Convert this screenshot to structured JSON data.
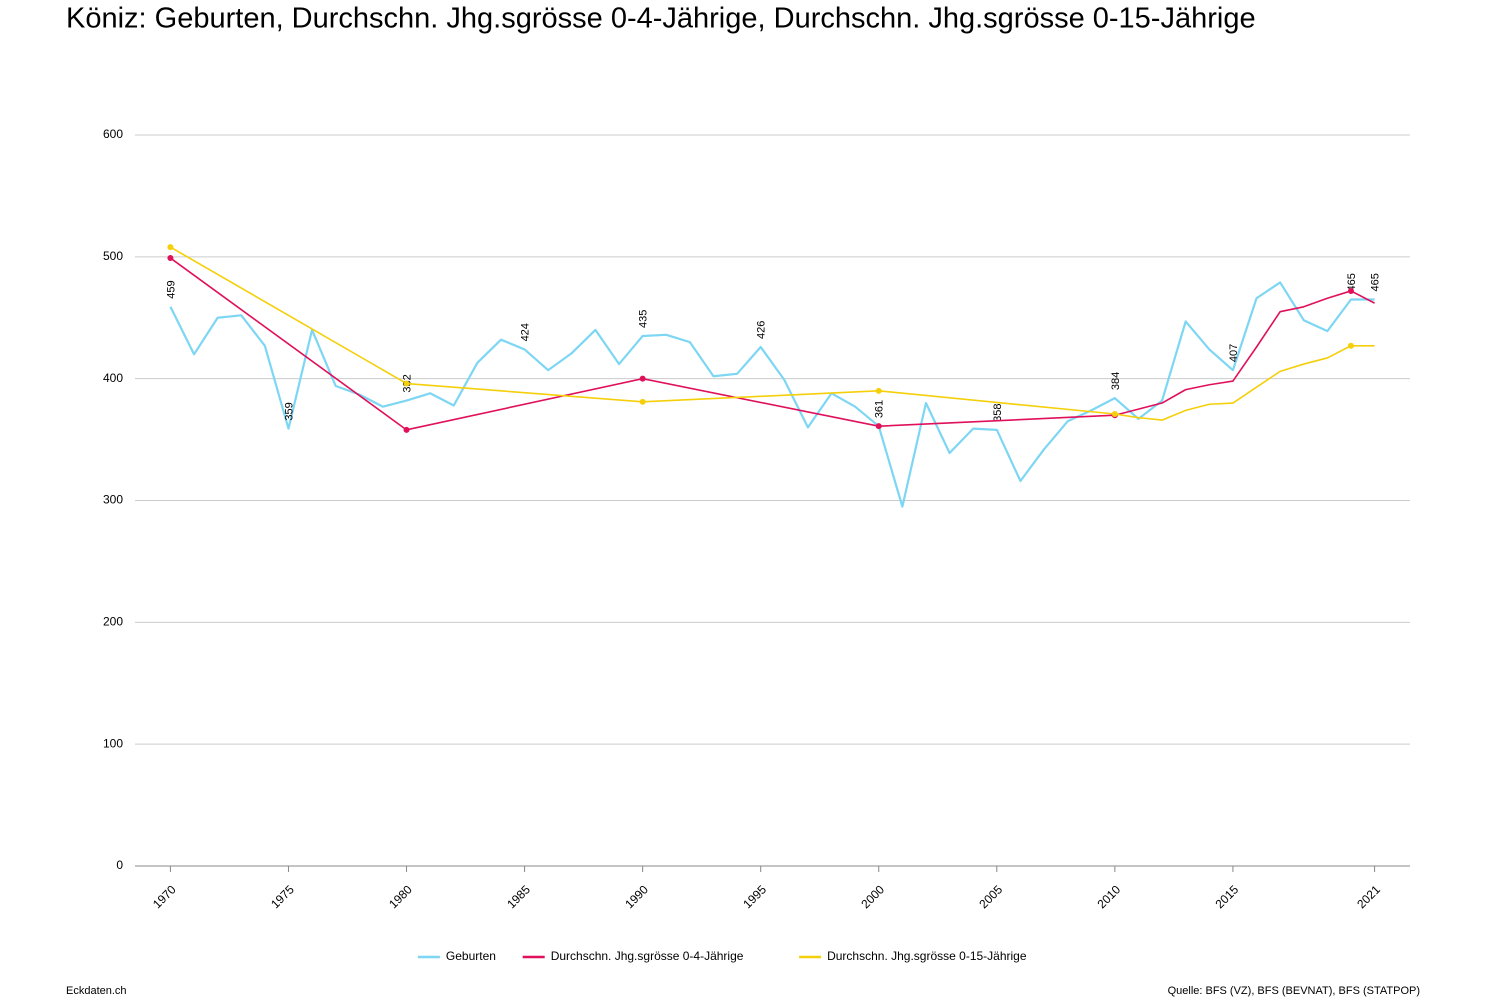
{
  "chart_data": {
    "type": "line",
    "title": "Köniz: Geburten, Durchschn. Jhg.sgrösse 0-4-Jährige, Durchschn. Jhg.sgrösse 0-15-Jährige",
    "footer_left": "Eckdaten.ch",
    "footer_right": "Quelle: BFS (VZ), BFS (BEVNAT), BFS (STATPOP)",
    "xlim": [
      1968.5,
      2022.5
    ],
    "xticks": [
      1970,
      1975,
      1980,
      1985,
      1990,
      1995,
      2000,
      2005,
      2010,
      2015,
      2021
    ],
    "ylim": [
      0,
      600
    ],
    "yticks": [
      0,
      100,
      200,
      300,
      400,
      500,
      600
    ],
    "grid": true,
    "legend": "bottom",
    "series": [
      {
        "name": "Geburten",
        "color": "#7dd6f3",
        "x": [
          1970,
          1971,
          1972,
          1973,
          1974,
          1975,
          1976,
          1977,
          1978,
          1979,
          1980,
          1981,
          1982,
          1983,
          1984,
          1985,
          1986,
          1987,
          1988,
          1989,
          1990,
          1991,
          1992,
          1993,
          1994,
          1995,
          1996,
          1997,
          1998,
          1999,
          2000,
          2001,
          2002,
          2003,
          2004,
          2005,
          2006,
          2007,
          2008,
          2009,
          2010,
          2011,
          2012,
          2013,
          2014,
          2015,
          2016,
          2017,
          2018,
          2019,
          2020,
          2021
        ],
        "values": [
          459,
          420,
          450,
          452,
          427,
          359,
          440,
          394,
          387,
          377,
          382,
          388,
          378,
          413,
          432,
          424,
          407,
          421,
          440,
          412,
          435,
          436,
          430,
          402,
          404,
          426,
          399,
          360,
          388,
          377,
          361,
          295,
          380,
          339,
          359,
          358,
          316,
          342,
          365,
          374,
          384,
          367,
          382,
          447,
          424,
          407,
          466,
          479,
          448,
          439,
          465,
          465
        ]
      },
      {
        "name": "Durchschn. Jhg.sgrösse 0-4-Jährige",
        "color": "#e0105a",
        "x": [
          1970,
          1980,
          1990,
          2000,
          2010,
          2011,
          2012,
          2013,
          2014,
          2015,
          2016,
          2017,
          2018,
          2019,
          2020,
          2021
        ],
        "values": [
          499,
          358,
          400,
          361,
          370,
          375,
          380,
          391,
          395,
          398,
          426,
          455,
          459,
          466,
          472,
          462
        ]
      },
      {
        "name": "Durchschn. Jhg.sgrösse 0-15-Jährige",
        "color": "#f5cf0a",
        "x": [
          1970,
          1980,
          1990,
          2000,
          2010,
          2011,
          2012,
          2013,
          2014,
          2015,
          2016,
          2017,
          2018,
          2019,
          2020,
          2021
        ],
        "values": [
          508,
          396,
          381,
          390,
          371,
          368,
          366,
          374,
          379,
          380,
          393,
          406,
          412,
          417,
          427,
          427
        ]
      }
    ]
  }
}
